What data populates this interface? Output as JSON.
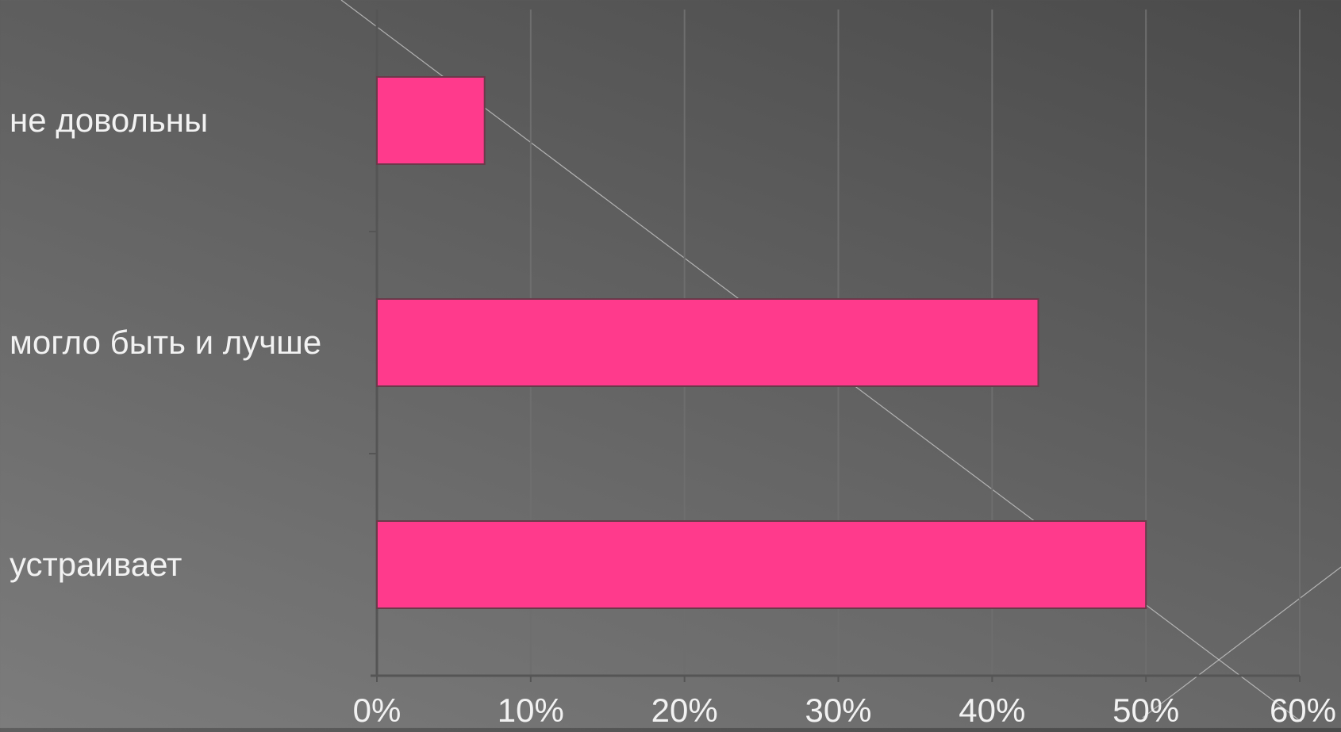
{
  "colors": {
    "bar": "#ff3a8c",
    "bar_edge": "#6a3a4a",
    "grid": "#6e6e6e",
    "axis": "#555555",
    "text": "#f2f2f2",
    "decor_line": "#cfcfcf"
  },
  "chart_data": {
    "type": "bar",
    "orientation": "horizontal",
    "categories": [
      "не довольны",
      "могло быть и лучше",
      "устраивает"
    ],
    "values": [
      7,
      43,
      50
    ],
    "unit": "%",
    "xlim": [
      0,
      60
    ],
    "xticks": [
      "0%",
      "10%",
      "20%",
      "30%",
      "40%",
      "50%",
      "60%"
    ],
    "grid": true,
    "legend": "none"
  }
}
